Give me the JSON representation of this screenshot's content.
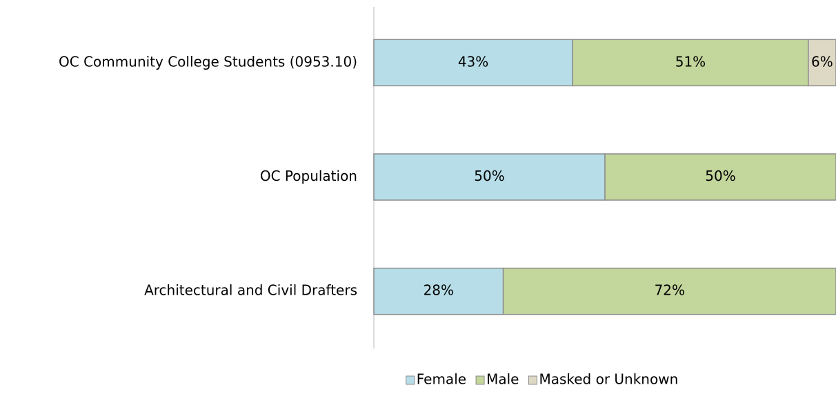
{
  "chart_data": {
    "type": "stacked-bar-horizontal",
    "categories": [
      "OC Community College Students (0953.10)",
      "OC Population",
      "Architectural and Civil Drafters"
    ],
    "series": [
      {
        "name": "Female",
        "color": "#b7dee8",
        "values": [
          43,
          50,
          28
        ],
        "value_labels": [
          "43%",
          "50%",
          "28%"
        ]
      },
      {
        "name": "Male",
        "color": "#c3d69b",
        "values": [
          51,
          50,
          72
        ],
        "value_labels": [
          "51%",
          "50%",
          "72%"
        ]
      },
      {
        "name": "Masked or Unknown",
        "color": "#ddd9c4",
        "values": [
          6,
          null,
          null
        ],
        "value_labels": [
          "6%",
          null,
          null
        ]
      }
    ],
    "xlim": [
      0,
      100
    ],
    "legend": "bottom"
  }
}
